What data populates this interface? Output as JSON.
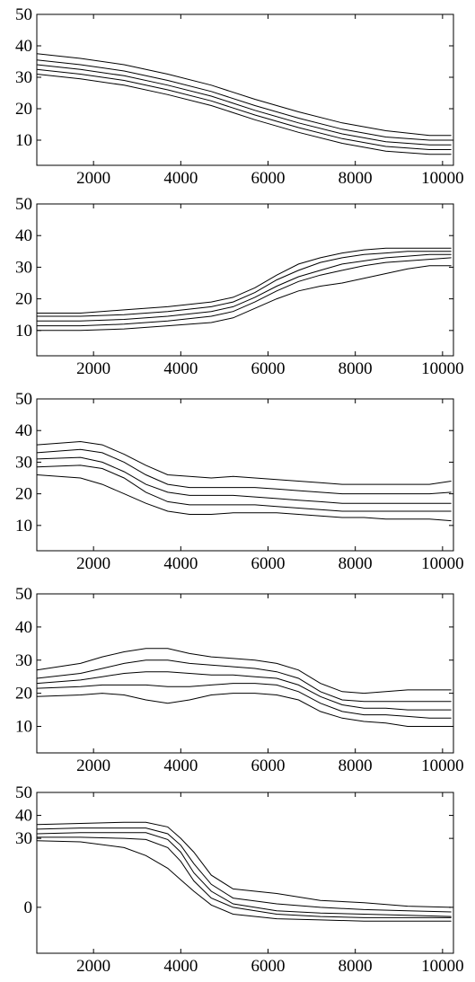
{
  "chart_data": [
    {
      "type": "line",
      "xlim": [
        700,
        10250
      ],
      "ylim": [
        2,
        50
      ],
      "xticks": [
        2000,
        4000,
        6000,
        8000,
        10000
      ],
      "yticks": [
        10,
        20,
        30,
        40,
        50
      ],
      "ytick_labels": [
        "10",
        "20",
        "30",
        "40",
        "50"
      ],
      "grid": false,
      "x": [
        700,
        1700,
        2700,
        3700,
        4700,
        5700,
        6700,
        7700,
        8700,
        9700,
        10200
      ],
      "series": [
        {
          "values": [
            37.5,
            36,
            34,
            31,
            27.5,
            23,
            19,
            15.5,
            13,
            11.5,
            11.5
          ]
        },
        {
          "values": [
            35.5,
            34,
            32,
            29,
            25.5,
            21,
            17,
            13.5,
            11,
            10,
            10
          ]
        },
        {
          "values": [
            34,
            32.5,
            30.5,
            27.5,
            24,
            19.5,
            15.5,
            12,
            9.5,
            8.5,
            8.5
          ]
        },
        {
          "values": [
            32.5,
            31,
            29,
            26,
            22.5,
            18,
            14,
            10.5,
            8,
            7,
            7
          ]
        },
        {
          "values": [
            31,
            29.5,
            27.5,
            24.5,
            21,
            16.5,
            12.5,
            9,
            6.5,
            5.5,
            5.5
          ]
        }
      ]
    },
    {
      "type": "line",
      "xlim": [
        700,
        10250
      ],
      "ylim": [
        2,
        50
      ],
      "xticks": [
        2000,
        4000,
        6000,
        8000,
        10000
      ],
      "yticks": [
        10,
        20,
        30,
        40,
        50
      ],
      "ytick_labels": [
        "10",
        "20",
        "30",
        "40",
        "50"
      ],
      "grid": false,
      "x": [
        700,
        1700,
        2700,
        3700,
        4700,
        5200,
        5700,
        6200,
        6700,
        7200,
        7700,
        8200,
        8700,
        9200,
        9700,
        10200
      ],
      "series": [
        {
          "values": [
            15.5,
            15.5,
            16.5,
            17.5,
            19,
            20.5,
            23.5,
            27.5,
            31,
            33,
            34.5,
            35.5,
            36,
            36,
            36,
            36
          ]
        },
        {
          "values": [
            14.5,
            14.5,
            15,
            16,
            17.5,
            19,
            22,
            26,
            29,
            31.5,
            33,
            34,
            34.5,
            35,
            35,
            35
          ]
        },
        {
          "values": [
            13,
            13,
            13.5,
            14.5,
            16,
            17.5,
            20.5,
            24,
            27,
            29,
            31,
            32,
            33,
            33.5,
            34,
            34
          ]
        },
        {
          "values": [
            11.5,
            11.5,
            12,
            13,
            14.5,
            16,
            19,
            22.5,
            25.5,
            27.5,
            29,
            30.5,
            31.5,
            32,
            32.5,
            33
          ]
        },
        {
          "values": [
            10,
            10,
            10.5,
            11.5,
            12.5,
            14,
            17,
            20,
            22.5,
            24,
            25,
            26.5,
            28,
            29.5,
            30.5,
            30.5
          ]
        }
      ]
    },
    {
      "type": "line",
      "xlim": [
        700,
        10250
      ],
      "ylim": [
        2,
        50
      ],
      "xticks": [
        2000,
        4000,
        6000,
        8000,
        10000
      ],
      "yticks": [
        10,
        20,
        30,
        40,
        50
      ],
      "ytick_labels": [
        "10",
        "20",
        "30",
        "40",
        "50"
      ],
      "grid": false,
      "x": [
        700,
        1700,
        2200,
        2700,
        3200,
        3700,
        4200,
        4700,
        5200,
        5700,
        6200,
        6700,
        7200,
        7700,
        8200,
        8700,
        9200,
        9700,
        10200
      ],
      "series": [
        {
          "values": [
            35.5,
            36.5,
            35.5,
            32.5,
            29,
            26,
            25.5,
            25,
            25.5,
            25,
            24.5,
            24,
            23.5,
            23,
            23,
            23,
            23,
            23,
            24
          ]
        },
        {
          "values": [
            33,
            34,
            33,
            30,
            26,
            23,
            22,
            22,
            22,
            22,
            21.5,
            21,
            20.5,
            20,
            20,
            20,
            20,
            20,
            20.5
          ]
        },
        {
          "values": [
            31,
            31.5,
            30,
            27,
            23,
            20.5,
            19.5,
            19.5,
            19.5,
            19,
            18.5,
            18,
            17.5,
            17,
            17,
            17,
            17,
            17,
            17
          ]
        },
        {
          "values": [
            28.5,
            29,
            28,
            25,
            20.5,
            17.5,
            16.5,
            16.5,
            16.5,
            16.5,
            16,
            15.5,
            15,
            14.5,
            14.5,
            14.5,
            14.5,
            14.5,
            14.5
          ]
        },
        {
          "values": [
            26,
            25,
            23,
            20,
            17,
            14.5,
            13.5,
            13.5,
            14,
            14,
            14,
            13.5,
            13,
            12.5,
            12.5,
            12,
            12,
            12,
            11.5
          ]
        }
      ]
    },
    {
      "type": "line",
      "xlim": [
        700,
        10250
      ],
      "ylim": [
        2,
        50
      ],
      "xticks": [
        2000,
        4000,
        6000,
        8000,
        10000
      ],
      "yticks": [
        10,
        20,
        30,
        40,
        50
      ],
      "ytick_labels": [
        "10",
        "20",
        "30",
        "40",
        "50"
      ],
      "grid": false,
      "x": [
        700,
        1700,
        2200,
        2700,
        3200,
        3700,
        4200,
        4700,
        5200,
        5700,
        6200,
        6700,
        7200,
        7700,
        8200,
        8700,
        9200,
        9700,
        10200
      ],
      "series": [
        {
          "values": [
            27,
            29,
            31,
            32.5,
            33.5,
            33.5,
            32,
            31,
            30.5,
            30,
            29,
            27,
            23,
            20.5,
            20,
            20.5,
            21,
            21,
            21
          ]
        },
        {
          "values": [
            24.5,
            26,
            27.5,
            29,
            30,
            30,
            29,
            28.5,
            28,
            27.5,
            26.5,
            24.5,
            20.5,
            18,
            17.5,
            17.5,
            17.5,
            17.5,
            17.5
          ]
        },
        {
          "values": [
            23,
            24,
            25,
            26,
            26.5,
            26.5,
            26,
            25.5,
            25.5,
            25,
            24.5,
            22.5,
            19,
            16.5,
            15.5,
            15.5,
            15,
            15,
            15
          ]
        },
        {
          "values": [
            21.5,
            22,
            22.5,
            22.5,
            22.5,
            22,
            22,
            22.5,
            23,
            23,
            22.5,
            20.5,
            17,
            14.5,
            13.5,
            13.5,
            13,
            12.5,
            12.5
          ]
        },
        {
          "values": [
            19,
            19.5,
            20,
            19.5,
            18,
            17,
            18,
            19.5,
            20,
            20,
            19.5,
            18,
            14.5,
            12.5,
            11.5,
            11,
            10,
            10,
            10
          ]
        }
      ]
    },
    {
      "type": "line",
      "xlim": [
        700,
        10250
      ],
      "ylim": [
        -20,
        50
      ],
      "xticks": [
        2000,
        4000,
        6000,
        8000,
        10000
      ],
      "yticks": [
        0,
        30,
        40,
        50
      ],
      "ytick_labels": [
        "0",
        "30",
        "40",
        "50"
      ],
      "grid": false,
      "x": [
        700,
        1700,
        2700,
        3200,
        3700,
        4000,
        4300,
        4700,
        5200,
        6200,
        7200,
        8200,
        9200,
        10200
      ],
      "series": [
        {
          "values": [
            36,
            36.5,
            37,
            37,
            35,
            30,
            24,
            14,
            8,
            6,
            3,
            2,
            0.5,
            0
          ]
        },
        {
          "values": [
            34,
            34.5,
            34.5,
            34.5,
            32,
            27,
            19,
            10,
            4,
            1.5,
            0,
            -1,
            -1.5,
            -2
          ]
        },
        {
          "values": [
            32,
            32.5,
            32.5,
            32.5,
            29.5,
            24,
            15,
            7,
            1.5,
            -1.5,
            -2.5,
            -3,
            -3.5,
            -4
          ]
        },
        {
          "values": [
            30.5,
            30.5,
            30,
            29.5,
            26,
            20,
            11.5,
            4,
            0,
            -3,
            -4,
            -4.5,
            -4.5,
            -4.5
          ]
        },
        {
          "values": [
            29,
            28.5,
            26,
            22.5,
            17,
            12,
            7,
            1,
            -3,
            -5,
            -5.5,
            -6,
            -6,
            -6
          ]
        }
      ]
    }
  ]
}
